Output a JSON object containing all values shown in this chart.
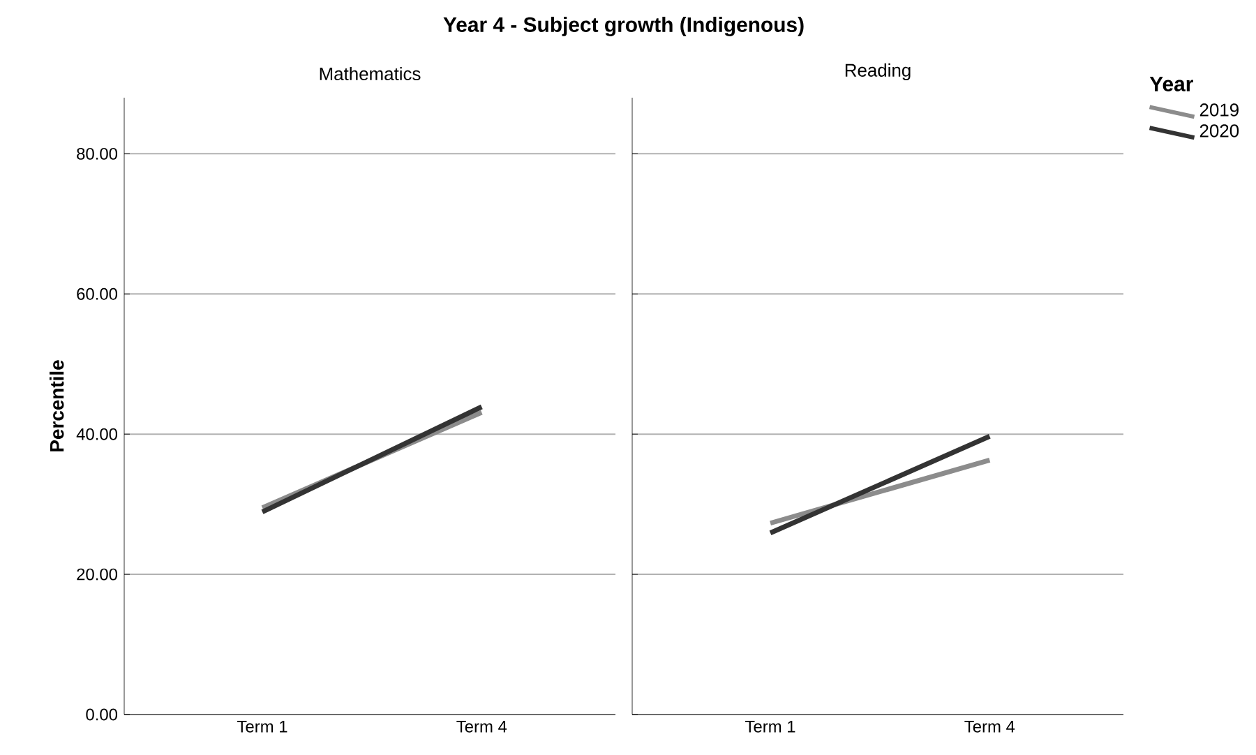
{
  "chart_data": [
    {
      "type": "line",
      "title": "Year 4 - Subject growth (Indigenous)",
      "subtitle": "Mathematics",
      "ylabel": "Percentile",
      "categories": [
        "Term 1",
        "Term 4"
      ],
      "ylim": [
        0,
        88
      ],
      "yticks": [
        {
          "value": 0,
          "label": "0.00"
        },
        {
          "value": 20,
          "label": "20.00"
        },
        {
          "value": 40,
          "label": "40.00"
        },
        {
          "value": 60,
          "label": "60.00"
        },
        {
          "value": 80,
          "label": "80.00"
        }
      ],
      "grid": "y",
      "series": [
        {
          "color": "#8c8c8c",
          "values": [
            29.5,
            43.1
          ]
        },
        {
          "color": "#333333",
          "values": [
            28.9,
            43.9
          ]
        }
      ]
    },
    {
      "type": "line",
      "subtitle": "Reading",
      "legend_title": "Year",
      "categories": [
        "Term 1",
        "Term 4"
      ],
      "ylim": [
        0,
        88
      ],
      "yticks": [
        {
          "value": 0,
          "label": null
        },
        {
          "value": 20,
          "label": null
        },
        {
          "value": 40,
          "label": null
        },
        {
          "value": 60,
          "label": null
        },
        {
          "value": 80,
          "label": null
        }
      ],
      "grid": "y",
      "tick_labels": "x",
      "legend": "right",
      "series": [
        {
          "name": "2019",
          "color": "#8c8c8c",
          "values": [
            27.3,
            36.3
          ]
        },
        {
          "name": "2020",
          "color": "#333333",
          "values": [
            25.9,
            39.7
          ]
        }
      ]
    }
  ]
}
